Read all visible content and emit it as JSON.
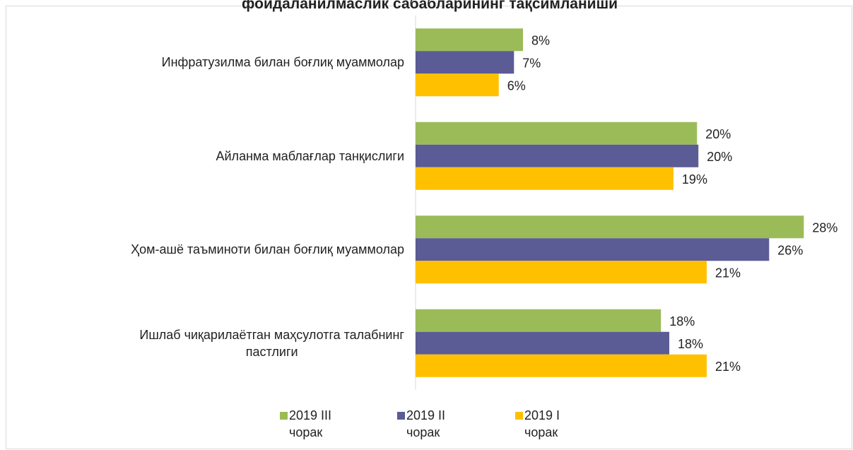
{
  "chart_data": {
    "type": "barh",
    "title": "фойдаланилмаслик сабабларининг тақсимланиши",
    "categories": [
      "Инфратузилма билан боғлиқ муаммолар",
      "Айланма маблағлар танқислиги",
      "Ҳом-ашё таъминоти билан боғлиқ муаммолар",
      "Ишлаб чиқарилаётган маҳсулотга талабнинг\nпастлиги"
    ],
    "series": [
      {
        "name": "2019 III\nчорак",
        "color": "#9bbb59",
        "values": [
          7.75,
          20.3,
          28.0,
          17.7
        ],
        "value_labels": [
          "8%",
          "20%",
          "28%",
          "18%"
        ]
      },
      {
        "name": "2019 II\nчорак",
        "color": "#5b5b96",
        "values": [
          7.1,
          20.4,
          25.5,
          18.3
        ],
        "value_labels": [
          "7%",
          "20%",
          "26%",
          "18%"
        ]
      },
      {
        "name": "2019 I\nчорак",
        "color": "#ffc000",
        "values": [
          6.0,
          18.6,
          21.0,
          21.0
        ],
        "value_labels": [
          "6%",
          "19%",
          "21%",
          "21%"
        ]
      }
    ],
    "xlim": [
      0,
      30
    ],
    "legend": "bottom"
  }
}
